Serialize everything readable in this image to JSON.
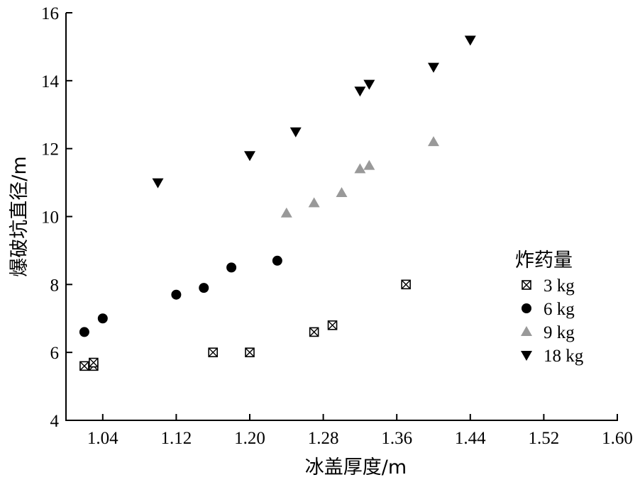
{
  "chart_data": {
    "type": "scatter",
    "xlabel": "冰盖厚度/m",
    "ylabel": "爆破坑直径/m",
    "xlim": [
      1.0,
      1.6
    ],
    "ylim": [
      4,
      16
    ],
    "xticks": [
      1.04,
      1.12,
      1.2,
      1.28,
      1.36,
      1.44,
      1.52,
      1.6
    ],
    "xtick_labels": [
      "1.04",
      "1.12",
      "1.20",
      "1.28",
      "1.36",
      "1.44",
      "1.52",
      "1.60"
    ],
    "yticks": [
      4,
      6,
      8,
      10,
      12,
      14,
      16
    ],
    "ytick_labels": [
      "4",
      "6",
      "8",
      "10",
      "12",
      "14",
      "16"
    ],
    "grid": false,
    "legend": {
      "title": "炸药量",
      "position": "right"
    },
    "series": [
      {
        "name": "3 kg",
        "marker": "boxed-x",
        "color": "#000000",
        "x": [
          1.02,
          1.03,
          1.03,
          1.16,
          1.2,
          1.27,
          1.29,
          1.37
        ],
        "y": [
          5.6,
          5.6,
          5.7,
          6.0,
          6.0,
          6.6,
          6.8,
          8.0
        ]
      },
      {
        "name": "6 kg",
        "marker": "circle",
        "color": "#000000",
        "x": [
          1.02,
          1.04,
          1.12,
          1.15,
          1.18,
          1.23
        ],
        "y": [
          6.6,
          7.0,
          7.7,
          7.9,
          8.5,
          8.7
        ]
      },
      {
        "name": "9 kg",
        "marker": "triangle-up",
        "color": "#999999",
        "x": [
          1.24,
          1.27,
          1.3,
          1.32,
          1.33,
          1.4
        ],
        "y": [
          10.1,
          10.4,
          10.7,
          11.4,
          11.5,
          12.2
        ]
      },
      {
        "name": "18 kg",
        "marker": "triangle-down",
        "color": "#000000",
        "x": [
          1.1,
          1.2,
          1.25,
          1.32,
          1.33,
          1.4,
          1.44
        ],
        "y": [
          11.0,
          11.8,
          12.5,
          13.7,
          13.9,
          14.4,
          15.2
        ]
      }
    ]
  }
}
